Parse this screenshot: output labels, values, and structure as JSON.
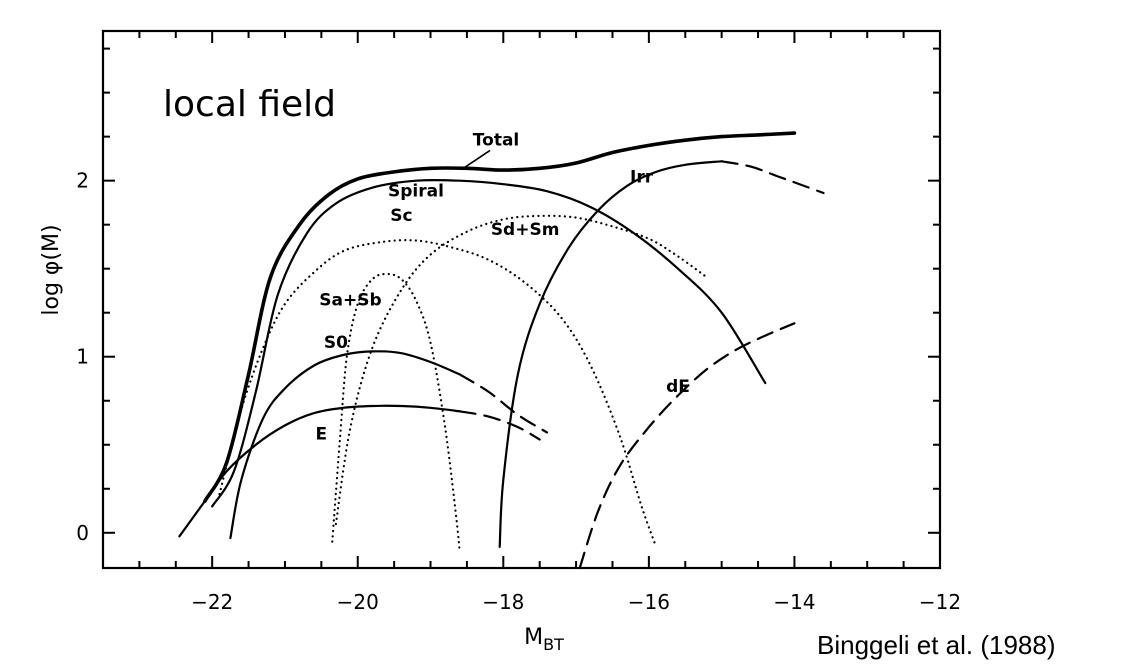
{
  "chart_data": {
    "type": "line",
    "title": "",
    "annotation": "local field",
    "xlabel": "M",
    "xlabel_subscript": "BT",
    "ylabel": "log φ(M)",
    "xlim": [
      -23.5,
      -12
    ],
    "ylim": [
      -0.2,
      2.85
    ],
    "xticks": [
      -22,
      -20,
      -18,
      -16,
      -14,
      -12
    ],
    "xtick_labels": [
      "−22",
      "−20",
      "−18",
      "−16",
      "−14",
      "−12"
    ],
    "yticks": [
      0,
      1,
      2
    ],
    "ytick_labels": [
      "0",
      "1",
      "2"
    ],
    "grid": false,
    "legend": "none",
    "series": [
      {
        "name": "Total",
        "style": "solid-thick",
        "label_at": [
          -18.1,
          2.2
        ],
        "points": [
          [
            -22.1,
            0.18
          ],
          [
            -21.8,
            0.4
          ],
          [
            -21.5,
            0.9
          ],
          [
            -21.2,
            1.45
          ],
          [
            -20.8,
            1.75
          ],
          [
            -20.4,
            1.92
          ],
          [
            -20.0,
            2.01
          ],
          [
            -19.5,
            2.05
          ],
          [
            -19.0,
            2.07
          ],
          [
            -18.5,
            2.07
          ],
          [
            -18.0,
            2.06
          ],
          [
            -17.5,
            2.07
          ],
          [
            -17.0,
            2.1
          ],
          [
            -16.5,
            2.16
          ],
          [
            -16.0,
            2.2
          ],
          [
            -15.5,
            2.23
          ],
          [
            -15.0,
            2.25
          ],
          [
            -14.5,
            2.26
          ],
          [
            -14.0,
            2.27
          ]
        ]
      },
      {
        "name": "Spiral",
        "style": "solid",
        "label_at": [
          -19.2,
          1.91
        ],
        "points": [
          [
            -22.0,
            0.15
          ],
          [
            -21.7,
            0.35
          ],
          [
            -21.4,
            0.8
          ],
          [
            -21.1,
            1.35
          ],
          [
            -20.7,
            1.7
          ],
          [
            -20.3,
            1.87
          ],
          [
            -19.8,
            1.96
          ],
          [
            -19.2,
            2.0
          ],
          [
            -18.6,
            2.0
          ],
          [
            -18.0,
            1.98
          ],
          [
            -17.4,
            1.94
          ],
          [
            -16.8,
            1.85
          ],
          [
            -16.2,
            1.7
          ],
          [
            -15.6,
            1.5
          ],
          [
            -15.0,
            1.25
          ],
          [
            -14.4,
            0.85
          ]
        ]
      },
      {
        "name": "Sc",
        "style": "dotted",
        "label_at": [
          -19.4,
          1.77
        ],
        "points": [
          [
            -21.9,
            0.22
          ],
          [
            -21.6,
            0.7
          ],
          [
            -21.3,
            1.05
          ],
          [
            -21.0,
            1.3
          ],
          [
            -20.6,
            1.48
          ],
          [
            -20.2,
            1.6
          ],
          [
            -19.7,
            1.65
          ],
          [
            -19.2,
            1.66
          ],
          [
            -18.7,
            1.62
          ],
          [
            -18.2,
            1.55
          ],
          [
            -17.7,
            1.42
          ],
          [
            -17.2,
            1.22
          ],
          [
            -16.8,
            0.95
          ],
          [
            -16.4,
            0.55
          ],
          [
            -16.1,
            0.15
          ],
          [
            -15.9,
            -0.08
          ]
        ]
      },
      {
        "name": "Sd+Sm",
        "style": "dotted",
        "label_at": [
          -17.7,
          1.69
        ],
        "points": [
          [
            -20.3,
            0.05
          ],
          [
            -20.1,
            0.6
          ],
          [
            -19.8,
            1.05
          ],
          [
            -19.4,
            1.38
          ],
          [
            -19.0,
            1.58
          ],
          [
            -18.5,
            1.71
          ],
          [
            -18.0,
            1.78
          ],
          [
            -17.5,
            1.8
          ],
          [
            -17.0,
            1.79
          ],
          [
            -16.5,
            1.74
          ],
          [
            -16.0,
            1.67
          ],
          [
            -15.6,
            1.57
          ],
          [
            -15.2,
            1.45
          ]
        ]
      },
      {
        "name": "Sa+Sb",
        "style": "dotted",
        "label_at": [
          -20.1,
          1.29
        ],
        "points": [
          [
            -20.35,
            -0.05
          ],
          [
            -20.25,
            0.5
          ],
          [
            -20.15,
            1.0
          ],
          [
            -20.0,
            1.3
          ],
          [
            -19.8,
            1.44
          ],
          [
            -19.6,
            1.47
          ],
          [
            -19.4,
            1.44
          ],
          [
            -19.2,
            1.32
          ],
          [
            -19.0,
            1.08
          ],
          [
            -18.8,
            0.6
          ],
          [
            -18.65,
            0.1
          ],
          [
            -18.6,
            -0.1
          ]
        ]
      },
      {
        "name": "S0",
        "style": "solid-dashed-tail",
        "label_at": [
          -20.3,
          1.05
        ],
        "points": [
          [
            -21.75,
            -0.03
          ],
          [
            -21.6,
            0.3
          ],
          [
            -21.3,
            0.65
          ],
          [
            -21.0,
            0.82
          ],
          [
            -20.6,
            0.95
          ],
          [
            -20.2,
            1.01
          ],
          [
            -19.8,
            1.03
          ],
          [
            -19.4,
            1.02
          ],
          [
            -19.0,
            0.97
          ],
          [
            -18.6,
            0.9
          ],
          [
            -18.2,
            0.8
          ],
          [
            -17.8,
            0.67
          ],
          [
            -17.4,
            0.57
          ]
        ]
      },
      {
        "name": "E",
        "style": "solid-dashed-tail",
        "label_at": [
          -20.5,
          0.53
        ],
        "points": [
          [
            -22.45,
            -0.02
          ],
          [
            -22.1,
            0.18
          ],
          [
            -21.8,
            0.35
          ],
          [
            -21.4,
            0.5
          ],
          [
            -21.0,
            0.61
          ],
          [
            -20.6,
            0.68
          ],
          [
            -20.2,
            0.71
          ],
          [
            -19.8,
            0.72
          ],
          [
            -19.4,
            0.72
          ],
          [
            -19.0,
            0.71
          ],
          [
            -18.6,
            0.69
          ],
          [
            -18.2,
            0.66
          ],
          [
            -17.8,
            0.6
          ],
          [
            -17.5,
            0.53
          ]
        ]
      },
      {
        "name": "Irr",
        "style": "solid-dashed-tail",
        "label_at": [
          -16.1,
          1.99
        ],
        "points": [
          [
            -18.05,
            -0.08
          ],
          [
            -18.0,
            0.3
          ],
          [
            -17.8,
            0.9
          ],
          [
            -17.5,
            1.3
          ],
          [
            -17.1,
            1.62
          ],
          [
            -16.7,
            1.83
          ],
          [
            -16.3,
            1.97
          ],
          [
            -15.9,
            2.05
          ],
          [
            -15.5,
            2.09
          ],
          [
            -15.0,
            2.11
          ],
          [
            -14.6,
            2.08
          ],
          [
            -14.2,
            2.02
          ],
          [
            -13.6,
            1.93
          ]
        ]
      },
      {
        "name": "dE",
        "style": "dashed",
        "label_at": [
          -15.6,
          0.8
        ],
        "points": [
          [
            -16.95,
            -0.2
          ],
          [
            -16.7,
            0.12
          ],
          [
            -16.4,
            0.38
          ],
          [
            -16.0,
            0.6
          ],
          [
            -15.6,
            0.78
          ],
          [
            -15.2,
            0.93
          ],
          [
            -14.8,
            1.04
          ],
          [
            -14.4,
            1.12
          ],
          [
            -14.0,
            1.19
          ]
        ]
      }
    ],
    "source_note": "Binggeli et al. (1988)"
  }
}
